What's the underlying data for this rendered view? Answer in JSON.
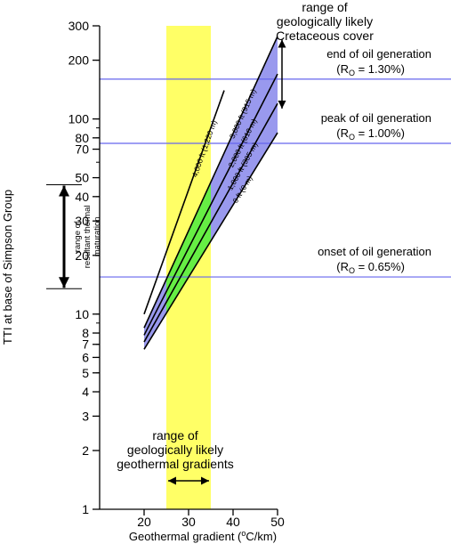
{
  "chart_data": {
    "type": "line",
    "xlabel": "Geothermal gradient (",
    "xlabel_degree": "o",
    "xlabel_unit": "C/km)",
    "ylabel": "TTI at base of Simpson Group",
    "xlim": [
      10,
      50
    ],
    "ylim": [
      1,
      300
    ],
    "yscale": "log",
    "x_ticks": [
      20,
      30,
      40,
      50
    ],
    "y_ticks": [
      1,
      2,
      3,
      4,
      5,
      6,
      7,
      8,
      10,
      20,
      30,
      40,
      50,
      70,
      80,
      100,
      200,
      300
    ],
    "y_tick_labels": [
      "1",
      "2",
      "3",
      "4",
      "5",
      "6",
      "7",
      "8",
      "10",
      "20",
      "30",
      "40",
      "50",
      "70",
      "80",
      "100",
      "200",
      "300"
    ],
    "series": [
      {
        "name": "4,000 ft (1,220 m)",
        "x": [
          20,
          38
        ],
        "y": [
          10,
          140
        ]
      },
      {
        "name": "3,000 ft (915 m)",
        "x": [
          20,
          50
        ],
        "y": [
          8.5,
          265
        ]
      },
      {
        "name": "2,000 ft (610 m)",
        "x": [
          20,
          50
        ],
        "y": [
          7.8,
          170
        ]
      },
      {
        "name": "1,000 ft (305 m)",
        "x": [
          20,
          50
        ],
        "y": [
          7.2,
          120
        ]
      },
      {
        "name": "0 ft (0 m)",
        "x": [
          20,
          50
        ],
        "y": [
          6.6,
          85
        ]
      }
    ],
    "likely_gradient_range": {
      "label": "range of\ngeologically likely\ngeothermal gradients",
      "x": [
        25,
        35
      ]
    },
    "cretaceous_cover": {
      "label": "range of\ngeologically likely\nCretaceous cover",
      "y": [
        113,
        255
      ]
    },
    "thermal_maturation": {
      "label": "range of\nresultant thermal\nmaturation",
      "y": [
        13.5,
        46
      ]
    },
    "thresholds": [
      {
        "label": "end of oil generation",
        "ro_label": "R",
        "ro_sub": "O",
        "ro_value": " = 1.30%)",
        "y": 160
      },
      {
        "label": "peak of oil generation",
        "ro_label": "R",
        "ro_sub": "O",
        "ro_value": " = 1.00%)",
        "y": 75
      },
      {
        "label": "onset of oil generation",
        "ro_label": "R",
        "ro_sub": "O",
        "ro_value": " = 0.65%)",
        "y": 15.5
      }
    ],
    "colors": {
      "gradient_band": "#ffff66",
      "cover_band": "#9999ee",
      "overlap_band": "#66ee44",
      "threshold_line": "#6666ee",
      "axis": "#000000"
    }
  }
}
